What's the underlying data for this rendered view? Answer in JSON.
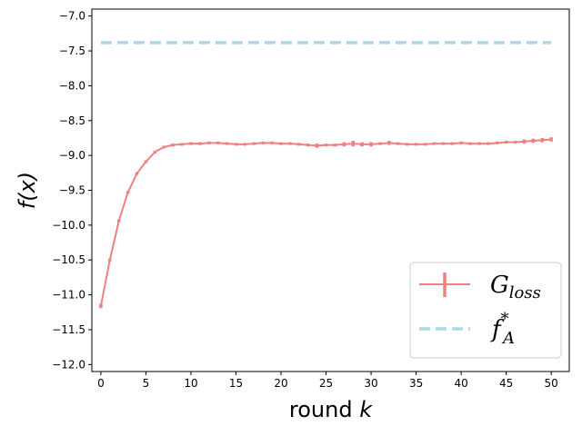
{
  "chart_data": {
    "type": "line",
    "xlabel": {
      "text": "round ",
      "var": "k"
    },
    "ylabel": {
      "text": "f(x)"
    },
    "xlim": [
      -1,
      52
    ],
    "ylim": [
      -12.1,
      -6.9
    ],
    "xticks": [
      0,
      5,
      10,
      15,
      20,
      25,
      30,
      35,
      40,
      45,
      50
    ],
    "yticks": [
      -12.0,
      -11.5,
      -11.0,
      -10.5,
      -10.0,
      -9.5,
      -9.0,
      -8.5,
      -8.0,
      -7.5,
      -7.0
    ],
    "ytick_labels": [
      "−12.0",
      "−11.5",
      "−11.0",
      "−10.5",
      "−10.0",
      "−9.5",
      "−9.0",
      "−8.5",
      "−8.0",
      "−7.5",
      "−7.0"
    ],
    "grid": false,
    "legend_position": "lower-right",
    "series": [
      {
        "name": "G_loss",
        "legend": {
          "main": "G",
          "sub": "loss"
        },
        "color": "#f08080",
        "style": "solid-with-errorbars",
        "x": [
          0,
          1,
          2,
          3,
          4,
          5,
          6,
          7,
          8,
          9,
          10,
          11,
          12,
          13,
          14,
          15,
          16,
          17,
          18,
          19,
          20,
          21,
          22,
          23,
          24,
          25,
          26,
          27,
          28,
          29,
          30,
          31,
          32,
          33,
          34,
          35,
          36,
          37,
          38,
          39,
          40,
          41,
          42,
          43,
          44,
          45,
          46,
          47,
          48,
          49,
          50
        ],
        "y": [
          -11.16,
          -10.5,
          -9.94,
          -9.53,
          -9.26,
          -9.09,
          -8.95,
          -8.88,
          -8.85,
          -8.84,
          -8.83,
          -8.83,
          -8.82,
          -8.82,
          -8.83,
          -8.84,
          -8.84,
          -8.83,
          -8.82,
          -8.82,
          -8.83,
          -8.83,
          -8.84,
          -8.85,
          -8.86,
          -8.85,
          -8.85,
          -8.84,
          -8.83,
          -8.84,
          -8.84,
          -8.83,
          -8.82,
          -8.83,
          -8.84,
          -8.84,
          -8.84,
          -8.83,
          -8.83,
          -8.83,
          -8.82,
          -8.83,
          -8.83,
          -8.83,
          -8.82,
          -8.81,
          -8.81,
          -8.8,
          -8.79,
          -8.78,
          -8.77
        ],
        "err": [
          0.03,
          0.02,
          0.02,
          0.02,
          0.02,
          0.02,
          0.02,
          0.02,
          0.01,
          0.01,
          0.01,
          0.01,
          0.02,
          0.02,
          0.01,
          0.01,
          0.01,
          0.01,
          0.02,
          0.02,
          0.02,
          0.02,
          0.01,
          0.01,
          0.03,
          0.02,
          0.02,
          0.03,
          0.04,
          0.03,
          0.03,
          0.02,
          0.03,
          0.02,
          0.02,
          0.02,
          0.02,
          0.01,
          0.01,
          0.01,
          0.02,
          0.02,
          0.01,
          0.01,
          0.02,
          0.02,
          0.02,
          0.03,
          0.03,
          0.03,
          0.03
        ]
      },
      {
        "name": "f_A*",
        "legend": {
          "main": "f",
          "sub": "A",
          "sup": "*"
        },
        "color": "#add8e6",
        "style": "dashed",
        "x": [
          0,
          50
        ],
        "y": [
          -7.38,
          -7.38
        ]
      }
    ]
  }
}
